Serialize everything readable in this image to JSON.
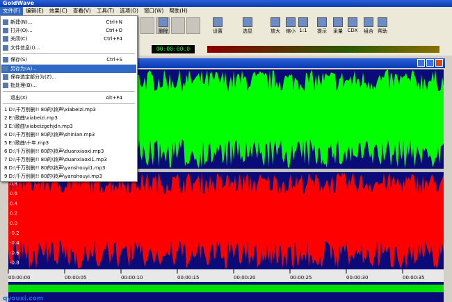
{
  "window": {
    "title": "GoldWave"
  },
  "menubar": [
    "文件(F)",
    "编辑(E)",
    "效果(C)",
    "查看(V)",
    "工具(T)",
    "选项(O)",
    "窗口(W)",
    "帮助(H)"
  ],
  "file_menu": {
    "groups": [
      [
        {
          "label": "新建(N)...",
          "shortcut": "Ctrl+N"
        },
        {
          "label": "打开(O)...",
          "shortcut": "Ctrl+O"
        },
        {
          "label": "关闭(C)",
          "shortcut": "Ctrl+F4"
        },
        {
          "label": "文件信息(I)..."
        }
      ],
      [
        {
          "label": "保存(S)",
          "shortcut": "Ctrl+S"
        },
        {
          "label": "另存为(A)..."
        },
        {
          "label": "保存选定部分为(Z)..."
        },
        {
          "label": "批处理(B)..."
        }
      ],
      [
        {
          "label": "退出(X)",
          "shortcut": "Alt+F4"
        }
      ]
    ],
    "recent": [
      "1 D:\\千万别删!! 80的\\铃声\\xiabeizi.mp3",
      "2 E:\\歌曲\\xiabeizi.mp3",
      "3 E:\\歌曲\\xiabeizgehjdn.mp3",
      "4 D:\\千万别删!! 80的\\铃声\\shinian.mp3",
      "5 E:\\歌曲\\十年.mp3",
      "6 D:\\千万别删!! 80的\\铃声\\duanxiaoxi.mp3",
      "7 D:\\千万别删!! 80的\\铃声\\duanxiaoxi1.mp3",
      "8 D:\\千万别删!! 80的\\铃声\\yanshouyi1.mp3",
      "9 D:\\千万别删!! 80的\\铃声\\yanshouyi.mp3"
    ]
  },
  "toolbar": [
    "删除",
    "设置",
    "选显",
    "放大",
    "缩小",
    "1:1",
    "提示",
    "采量",
    "CDX",
    "组合",
    "帮助"
  ],
  "time_display": "00:00:00.0",
  "amplitude_labels": [
    "0.8",
    "0.6",
    "0.4",
    "0.2",
    "0.0",
    "-0.2",
    "-0.4",
    "-0.6",
    "-0.8"
  ],
  "timeline": [
    "00:00:00",
    "00:00:05",
    "00:00:10",
    "00:00:15",
    "00:00:20",
    "00:00:25",
    "00:00:30",
    "00:00:35"
  ],
  "watermark": "qyouxi.com"
}
